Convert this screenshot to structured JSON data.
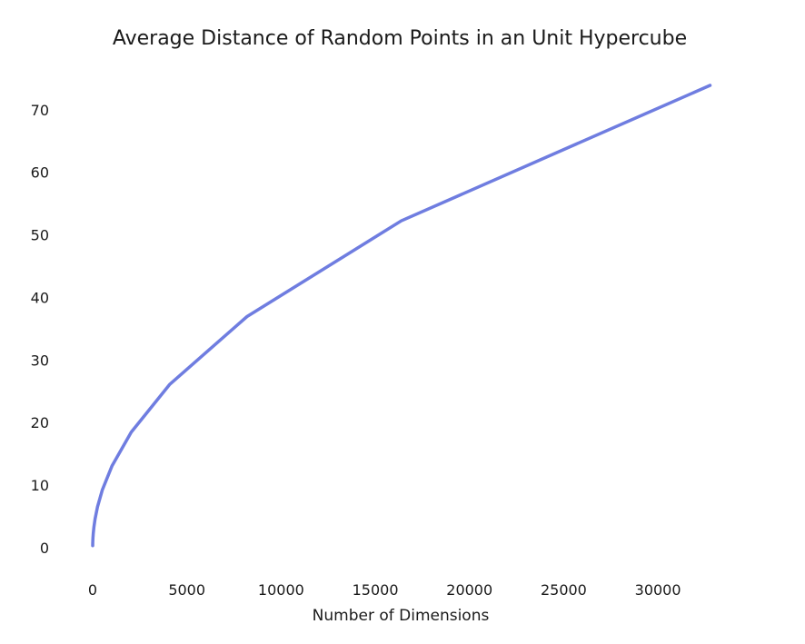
{
  "chart_data": {
    "type": "line",
    "title": "Average Distance of Random Points in an Unit Hypercube",
    "xlabel": "Number of Dimensions",
    "ylabel": "",
    "xlim": [
      0,
      34000
    ],
    "ylim": [
      -2,
      76
    ],
    "xticks": [
      0,
      5000,
      10000,
      15000,
      20000,
      25000,
      30000
    ],
    "yticks": [
      0,
      10,
      20,
      30,
      40,
      50,
      60,
      70
    ],
    "grid": false,
    "color": "#6f7de0",
    "series": [
      {
        "x": [
          1,
          2,
          4,
          8,
          16,
          32,
          64,
          128,
          256,
          512,
          1024,
          2048,
          4096,
          8192,
          16384,
          32768
        ],
        "y": [
          0.33,
          0.52,
          0.78,
          1.13,
          1.62,
          2.3,
          3.26,
          4.61,
          6.53,
          9.24,
          13.06,
          18.48,
          26.13,
          36.95,
          52.26,
          73.9
        ]
      }
    ]
  }
}
